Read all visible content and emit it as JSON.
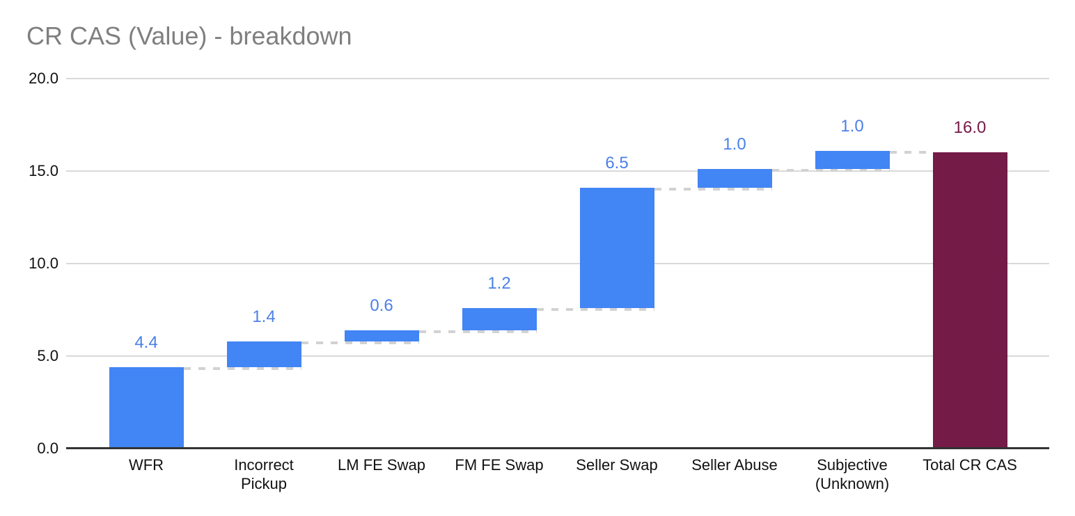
{
  "chart_data": {
    "type": "bar",
    "variant": "waterfall",
    "title": "CR CAS (Value) - breakdown",
    "xlabel": "",
    "ylabel": "",
    "ylim": [
      0,
      20
    ],
    "grid": true,
    "legend": "none",
    "yticks": [
      {
        "label": "20.0",
        "value": 20
      },
      {
        "label": "15.0",
        "value": 15
      },
      {
        "label": "10.0",
        "value": 10
      },
      {
        "label": "5.0",
        "value": 5
      },
      {
        "label": "0.0",
        "value": 0
      }
    ],
    "bars": [
      {
        "category": "WFR",
        "value": 4.4,
        "label": "4.4",
        "start": 0,
        "end": 4.4,
        "role": "delta"
      },
      {
        "category": "Incorrect\nPickup",
        "value": 1.4,
        "label": "1.4",
        "start": 4.4,
        "end": 5.8,
        "role": "delta"
      },
      {
        "category": "LM FE Swap",
        "value": 0.6,
        "label": "0.6",
        "start": 5.8,
        "end": 6.4,
        "role": "delta"
      },
      {
        "category": "FM FE Swap",
        "value": 1.2,
        "label": "1.2",
        "start": 6.4,
        "end": 7.6,
        "role": "delta"
      },
      {
        "category": "Seller Swap",
        "value": 6.5,
        "label": "6.5",
        "start": 7.6,
        "end": 14.1,
        "role": "delta"
      },
      {
        "category": "Seller Abuse",
        "value": 1.0,
        "label": "1.0",
        "start": 14.1,
        "end": 15.1,
        "role": "delta"
      },
      {
        "category": "Subjective\n(Unknown)",
        "value": 1.0,
        "label": "1.0",
        "start": 15.1,
        "end": 16.1,
        "role": "delta"
      },
      {
        "category": "Total CR CAS",
        "value": 16.0,
        "label": "16.0",
        "start": 0,
        "end": 16.0,
        "role": "total"
      }
    ],
    "colors": {
      "delta_bar": "#4285f4",
      "total_bar": "#741b47",
      "delta_label": "#4a80e8",
      "total_label": "#741b47",
      "connector": "#d2d2d2",
      "gridline": "#d9d9d9",
      "axis": "#333333",
      "title_text": "#7f7f7f",
      "tick_text": "#111111",
      "category_text": "#111111"
    }
  }
}
